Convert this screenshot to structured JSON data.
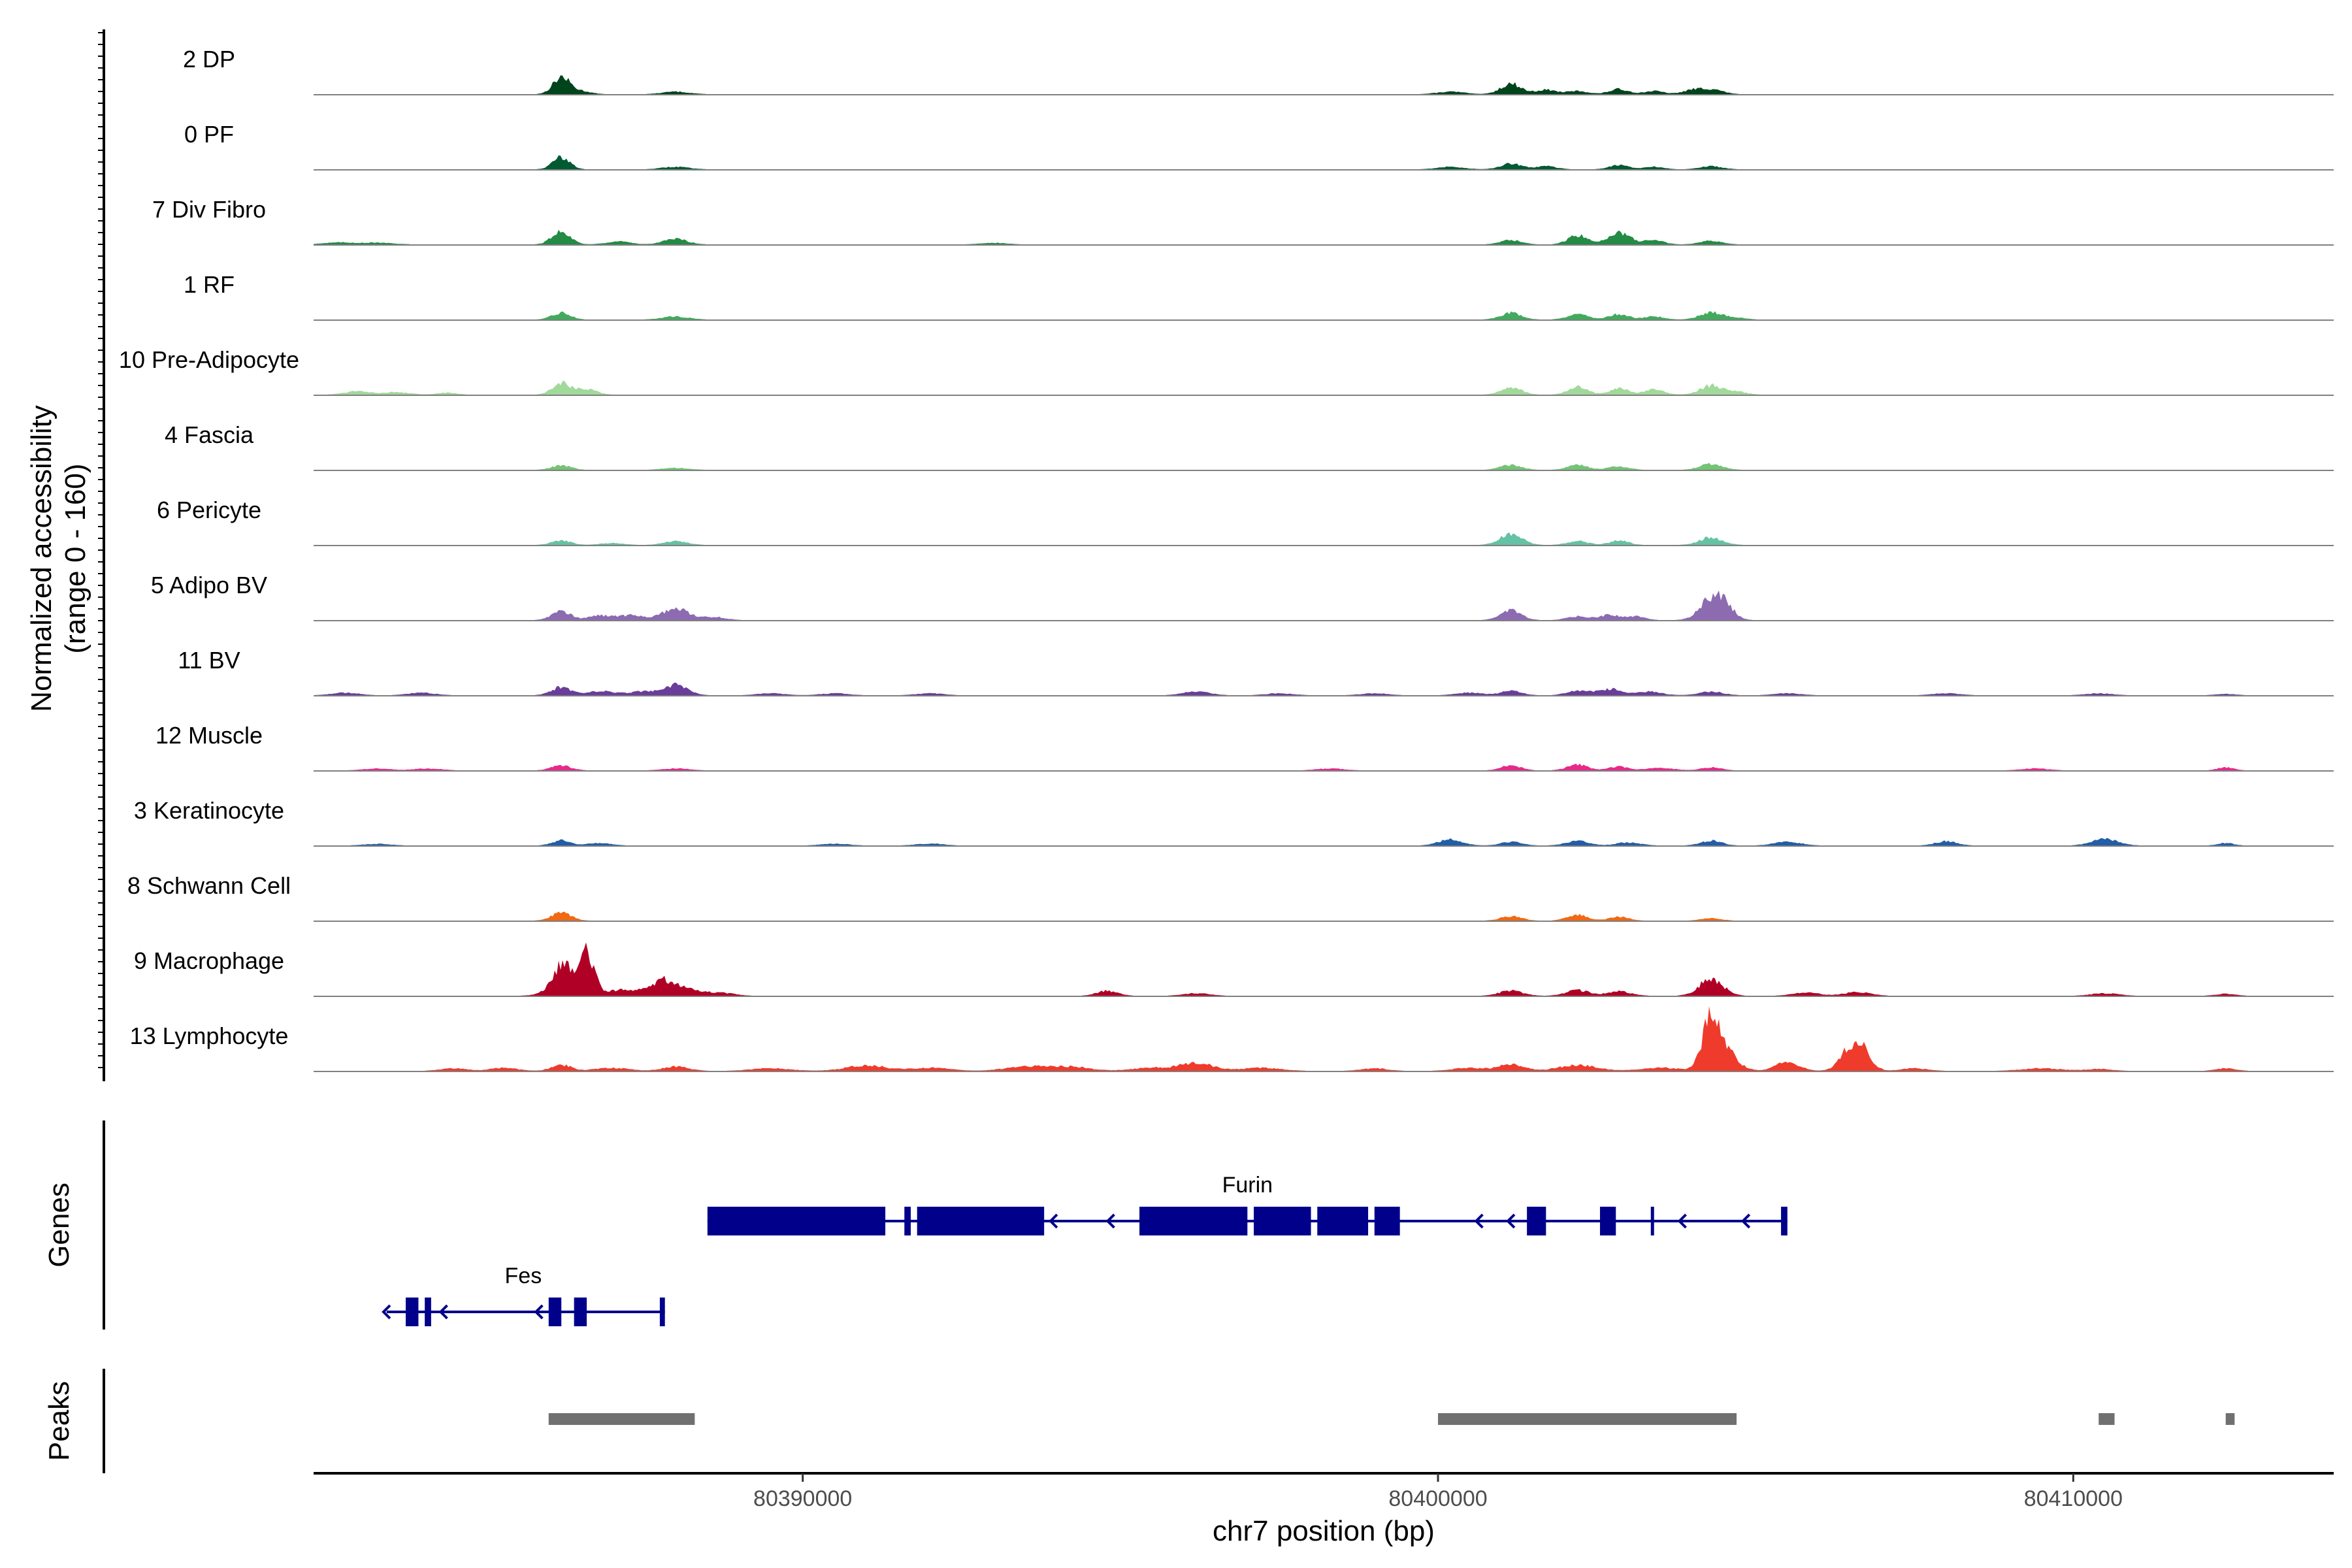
{
  "chart_data": {
    "type": "area",
    "title": "",
    "xlabel": "chr7 position (bp)",
    "ylabel": "Normalized accessibility",
    "ylabel_sub": "(range 0 - 160)",
    "y_range": [
      0,
      160
    ],
    "x_range": [
      80382300,
      80414100
    ],
    "x_ticks": [
      80390000,
      80400000,
      80410000
    ],
    "x_tick_labels": [
      "80390000",
      "80400000",
      "80410000"
    ],
    "panels": {
      "genes_label": "Genes",
      "peaks_label": "Peaks"
    },
    "tracks": [
      {
        "name": "2 DP",
        "color": "#00441b",
        "peaks": [
          [
            80386200,
            55,
            130
          ],
          [
            80386500,
            10,
            150
          ],
          [
            80388000,
            8,
            200
          ],
          [
            80400200,
            8,
            200
          ],
          [
            80401150,
            34,
            160
          ],
          [
            80401700,
            14,
            160
          ],
          [
            80402200,
            10,
            160
          ],
          [
            80402850,
            16,
            150
          ],
          [
            80403400,
            10,
            150
          ],
          [
            80404300,
            16,
            170
          ],
          [
            80404000,
            12,
            150
          ]
        ]
      },
      {
        "name": "0 PF",
        "color": "#005a32",
        "peaks": [
          [
            80386200,
            40,
            130
          ],
          [
            80388000,
            8,
            200
          ],
          [
            80400200,
            8,
            200
          ],
          [
            80401150,
            18,
            160
          ],
          [
            80401700,
            10,
            160
          ],
          [
            80402850,
            14,
            150
          ],
          [
            80403400,
            8,
            150
          ],
          [
            80404300,
            10,
            170
          ]
        ]
      },
      {
        "name": "7 Div Fibro",
        "color": "#238b45",
        "peaks": [
          [
            80382700,
            6,
            250
          ],
          [
            80383300,
            5,
            250
          ],
          [
            80386200,
            45,
            140
          ],
          [
            80387100,
            10,
            180
          ],
          [
            80388000,
            18,
            180
          ],
          [
            80393000,
            5,
            200
          ],
          [
            80401150,
            14,
            160
          ],
          [
            80402200,
            30,
            150
          ],
          [
            80402850,
            40,
            170
          ],
          [
            80403400,
            14,
            150
          ],
          [
            80404300,
            12,
            170
          ]
        ]
      },
      {
        "name": "1 RF",
        "color": "#41ab5d",
        "peaks": [
          [
            80386200,
            22,
            140
          ],
          [
            80388000,
            10,
            200
          ],
          [
            80401150,
            22,
            160
          ],
          [
            80402200,
            18,
            160
          ],
          [
            80402850,
            18,
            150
          ],
          [
            80403400,
            10,
            150
          ],
          [
            80404300,
            24,
            170
          ],
          [
            80404700,
            6,
            150
          ]
        ]
      },
      {
        "name": "10 Pre-Adipocyte",
        "color": "#a1d99b",
        "peaks": [
          [
            80383000,
            12,
            200
          ],
          [
            80383600,
            8,
            200
          ],
          [
            80384400,
            6,
            150
          ],
          [
            80386200,
            38,
            140
          ],
          [
            80386600,
            20,
            150
          ],
          [
            80401150,
            24,
            160
          ],
          [
            80402200,
            26,
            150
          ],
          [
            80402850,
            20,
            150
          ],
          [
            80403400,
            16,
            150
          ],
          [
            80404300,
            30,
            170
          ],
          [
            80404700,
            10,
            150
          ]
        ]
      },
      {
        "name": "4 Fascia",
        "color": "#74c476",
        "peaks": [
          [
            80386200,
            14,
            150
          ],
          [
            80388000,
            6,
            200
          ],
          [
            80401150,
            16,
            160
          ],
          [
            80402200,
            16,
            160
          ],
          [
            80402850,
            12,
            150
          ],
          [
            80404300,
            20,
            170
          ]
        ]
      },
      {
        "name": "6 Pericyte",
        "color": "#66c2a4",
        "peaks": [
          [
            80386200,
            14,
            150
          ],
          [
            80387000,
            6,
            180
          ],
          [
            80388000,
            12,
            180
          ],
          [
            80401150,
            36,
            170
          ],
          [
            80402200,
            12,
            160
          ],
          [
            80402850,
            14,
            150
          ],
          [
            80404300,
            24,
            180
          ]
        ]
      },
      {
        "name": "5 Adipo BV",
        "color": "#8c6bb1",
        "peaks": [
          [
            80386200,
            30,
            150
          ],
          [
            80386800,
            14,
            170
          ],
          [
            80387300,
            16,
            200
          ],
          [
            80388000,
            38,
            200
          ],
          [
            80388600,
            10,
            180
          ],
          [
            80401150,
            32,
            160
          ],
          [
            80402200,
            12,
            160
          ],
          [
            80402700,
            16,
            160
          ],
          [
            80403100,
            12,
            150
          ],
          [
            80404300,
            64,
            180
          ],
          [
            80404500,
            40,
            150
          ]
        ]
      },
      {
        "name": "11 BV",
        "color": "#6a3d9a",
        "peaks": [
          [
            80382800,
            8,
            200
          ],
          [
            80384000,
            8,
            200
          ],
          [
            80386200,
            26,
            150
          ],
          [
            80386800,
            14,
            200
          ],
          [
            80387500,
            12,
            250
          ],
          [
            80388000,
            32,
            180
          ],
          [
            80389500,
            6,
            200
          ],
          [
            80390500,
            6,
            200
          ],
          [
            80392000,
            6,
            200
          ],
          [
            80396200,
            12,
            200
          ],
          [
            80397500,
            6,
            200
          ],
          [
            80399000,
            6,
            200
          ],
          [
            80400500,
            8,
            200
          ],
          [
            80401150,
            14,
            160
          ],
          [
            80402200,
            16,
            160
          ],
          [
            80402700,
            20,
            170
          ],
          [
            80403300,
            12,
            200
          ],
          [
            80404300,
            12,
            180
          ],
          [
            80405500,
            6,
            200
          ],
          [
            80408000,
            6,
            200
          ],
          [
            80410400,
            6,
            200
          ],
          [
            80412400,
            4,
            150
          ]
        ]
      },
      {
        "name": "12 Muscle",
        "color": "#e7298a",
        "peaks": [
          [
            80383300,
            6,
            200
          ],
          [
            80384100,
            6,
            200
          ],
          [
            80386200,
            16,
            150
          ],
          [
            80388000,
            6,
            200
          ],
          [
            80398300,
            6,
            200
          ],
          [
            80401150,
            16,
            150
          ],
          [
            80402200,
            18,
            160
          ],
          [
            80402850,
            12,
            150
          ],
          [
            80403500,
            8,
            200
          ],
          [
            80404300,
            10,
            150
          ],
          [
            80409400,
            6,
            200
          ],
          [
            80412400,
            10,
            120
          ]
        ]
      },
      {
        "name": "3 Keratinocyte",
        "color": "#225ea8",
        "peaks": [
          [
            80383300,
            5,
            200
          ],
          [
            80386200,
            16,
            140
          ],
          [
            80386800,
            8,
            180
          ],
          [
            80390500,
            6,
            200
          ],
          [
            80392000,
            6,
            200
          ],
          [
            80400200,
            20,
            180
          ],
          [
            80401150,
            12,
            160
          ],
          [
            80402200,
            14,
            180
          ],
          [
            80403000,
            10,
            180
          ],
          [
            80404300,
            16,
            160
          ],
          [
            80405500,
            12,
            200
          ],
          [
            80408000,
            14,
            160
          ],
          [
            80410500,
            22,
            200
          ],
          [
            80412400,
            8,
            120
          ]
        ]
      },
      {
        "name": "8 Schwann Cell",
        "color": "#f16913",
        "peaks": [
          [
            80386200,
            26,
            150
          ],
          [
            80401150,
            14,
            160
          ],
          [
            80402200,
            18,
            160
          ],
          [
            80402850,
            12,
            150
          ],
          [
            80404300,
            8,
            150
          ]
        ]
      },
      {
        "name": "9 Macrophage",
        "color": "#b10026",
        "peaks": [
          [
            80386200,
            62,
            130
          ],
          [
            80386600,
            120,
            120
          ],
          [
            80386300,
            40,
            250
          ],
          [
            80387200,
            20,
            250
          ],
          [
            80387800,
            50,
            180
          ],
          [
            80388200,
            20,
            200
          ],
          [
            80388700,
            10,
            200
          ],
          [
            80394800,
            16,
            160
          ],
          [
            80396200,
            8,
            200
          ],
          [
            80401150,
            16,
            180
          ],
          [
            80402200,
            18,
            180
          ],
          [
            80402850,
            14,
            180
          ],
          [
            80404300,
            56,
            180
          ],
          [
            80405800,
            10,
            200
          ],
          [
            80406600,
            12,
            200
          ],
          [
            80410500,
            8,
            200
          ],
          [
            80412400,
            6,
            150
          ]
        ]
      },
      {
        "name": "13 Lymphocyte",
        "color": "#ef3b2c",
        "peaks": [
          [
            80384500,
            8,
            200
          ],
          [
            80385300,
            10,
            200
          ],
          [
            80386200,
            20,
            150
          ],
          [
            80387000,
            10,
            250
          ],
          [
            80388000,
            14,
            200
          ],
          [
            80389500,
            8,
            300
          ],
          [
            80391000,
            18,
            300
          ],
          [
            80392000,
            10,
            300
          ],
          [
            80393500,
            14,
            300
          ],
          [
            80394200,
            14,
            300
          ],
          [
            80395500,
            10,
            300
          ],
          [
            80396200,
            26,
            250
          ],
          [
            80397200,
            10,
            300
          ],
          [
            80399000,
            8,
            200
          ],
          [
            80400500,
            10,
            250
          ],
          [
            80401150,
            20,
            200
          ],
          [
            80402200,
            18,
            300
          ],
          [
            80403500,
            10,
            300
          ],
          [
            80404300,
            150,
            140
          ],
          [
            80404500,
            60,
            200
          ],
          [
            80405500,
            30,
            180
          ],
          [
            80406500,
            70,
            160
          ],
          [
            80406700,
            50,
            140
          ],
          [
            80407500,
            8,
            200
          ],
          [
            80409500,
            8,
            300
          ],
          [
            80410400,
            6,
            200
          ],
          [
            80412400,
            8,
            150
          ]
        ]
      }
    ],
    "genes": [
      {
        "name": "Fes",
        "strand": "-",
        "start": 80383450,
        "end": 80387830,
        "row": 2,
        "color": "#00008b",
        "exons": [
          [
            80383750,
            80383950
          ],
          [
            80384050,
            80384150
          ],
          [
            80386000,
            80386200
          ],
          [
            80386400,
            80386600
          ],
          [
            80387750,
            80387830
          ]
        ],
        "arrows": [
          80383400,
          80384300,
          80385800
        ]
      },
      {
        "name": "Furin",
        "strand": "-",
        "start": 80388500,
        "end": 80405500,
        "row": 1,
        "color": "#00008b",
        "exons": [
          [
            80388500,
            80391300
          ],
          [
            80391600,
            80391700
          ],
          [
            80391800,
            80393800
          ],
          [
            80395300,
            80397000
          ],
          [
            80397100,
            80398000
          ],
          [
            80398100,
            80398900
          ],
          [
            80399000,
            80399400
          ],
          [
            80401400,
            80401700
          ],
          [
            80402550,
            80402800
          ],
          [
            80403350,
            80403400
          ],
          [
            80405400,
            80405500
          ]
        ],
        "arrows": [
          80393900,
          80394800,
          80400600,
          80401100,
          80403800,
          80404800
        ]
      }
    ],
    "peak_regions": [
      [
        80386000,
        80388300
      ],
      [
        80400000,
        80404700
      ],
      [
        80410400,
        80410650
      ],
      [
        80412400,
        80412540
      ]
    ]
  }
}
